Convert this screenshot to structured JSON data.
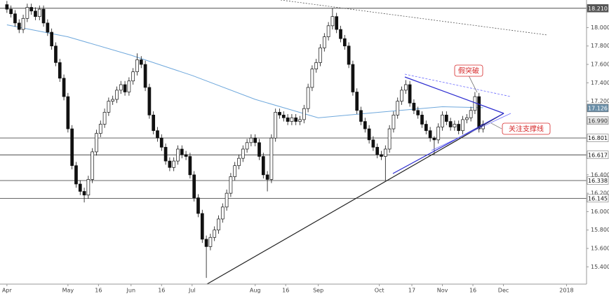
{
  "chart_data": {
    "type": "candlestick",
    "xlim": [
      -3.4,
      284.5
    ],
    "ylim": [
      15.22,
      18.3
    ],
    "xticks": [
      {
        "value": 0,
        "label": "Apr"
      },
      {
        "value": 30,
        "label": "May"
      },
      {
        "value": 45,
        "label": "16"
      },
      {
        "value": 61,
        "label": "Jun"
      },
      {
        "value": 76,
        "label": "16"
      },
      {
        "value": 91,
        "label": "Jul"
      },
      {
        "value": 122,
        "label": "Aug"
      },
      {
        "value": 137,
        "label": "16"
      },
      {
        "value": 153,
        "label": "Sep"
      },
      {
        "value": 183,
        "label": "Oct"
      },
      {
        "value": 199,
        "label": "17"
      },
      {
        "value": 214,
        "label": "Nov"
      },
      {
        "value": 229,
        "label": "16"
      },
      {
        "value": 244,
        "label": "Dec"
      },
      {
        "value": 275,
        "label": "2018"
      }
    ],
    "yticks": [
      {
        "value": 18.0,
        "label": "18.000"
      },
      {
        "value": 17.8,
        "label": "17.800"
      },
      {
        "value": 17.6,
        "label": "17.600"
      },
      {
        "value": 17.4,
        "label": "17.400"
      },
      {
        "value": 17.2,
        "label": "17.200"
      },
      {
        "value": 16.4,
        "label": "16.400"
      },
      {
        "value": 16.2,
        "label": "16.200"
      },
      {
        "value": 16.0,
        "label": "16.000"
      },
      {
        "value": 15.8,
        "label": "15.800"
      },
      {
        "value": 15.6,
        "label": "15.600"
      },
      {
        "value": 15.4,
        "label": "15.400"
      }
    ],
    "candles": {
      "x": [
        0,
        2,
        4,
        6,
        8,
        10,
        12,
        14,
        16,
        18,
        20,
        22,
        24,
        26,
        28,
        30,
        32,
        34,
        36,
        38,
        40,
        42,
        44,
        46,
        48,
        50,
        52,
        54,
        56,
        58,
        60,
        62,
        64,
        66,
        68,
        70,
        72,
        74,
        76,
        78,
        80,
        82,
        84,
        86,
        88,
        90,
        92,
        94,
        96,
        98,
        100,
        102,
        104,
        106,
        108,
        110,
        112,
        114,
        116,
        118,
        120,
        122,
        124,
        126,
        128,
        130,
        132,
        134,
        136,
        138,
        140,
        142,
        144,
        146,
        148,
        150,
        152,
        154,
        156,
        158,
        160,
        162,
        164,
        166,
        168,
        170,
        172,
        174,
        176,
        178,
        180,
        182,
        184,
        186,
        188,
        190,
        192,
        194,
        196,
        198,
        200,
        202,
        204,
        206,
        208,
        210,
        212,
        214,
        216,
        218,
        220,
        222,
        224,
        226,
        228,
        230,
        232,
        234
      ],
      "open": [
        18.25,
        18.2,
        18.15,
        18.05,
        17.98,
        18.1,
        18.22,
        18.18,
        18.12,
        18.2,
        18.05,
        17.95,
        17.8,
        17.62,
        17.45,
        17.25,
        16.9,
        16.5,
        16.3,
        16.22,
        16.18,
        16.35,
        16.65,
        16.85,
        16.95,
        17.08,
        17.2,
        17.22,
        17.32,
        17.38,
        17.3,
        17.42,
        17.52,
        17.65,
        17.6,
        17.35,
        17.05,
        16.88,
        16.8,
        16.7,
        16.55,
        16.48,
        16.55,
        16.68,
        16.62,
        16.6,
        16.4,
        16.15,
        15.98,
        15.7,
        15.62,
        15.72,
        15.8,
        15.92,
        16.05,
        16.2,
        16.38,
        16.5,
        16.58,
        16.68,
        16.75,
        16.8,
        16.75,
        16.6,
        16.4,
        16.35,
        16.8,
        17.08,
        17.05,
        17.02,
        16.98,
        17.02,
        16.98,
        17.0,
        17.12,
        17.35,
        17.55,
        17.62,
        17.78,
        17.9,
        18.02,
        18.12,
        17.98,
        17.88,
        17.8,
        17.6,
        17.3,
        17.1,
        16.98,
        16.9,
        16.78,
        16.7,
        16.62,
        16.6,
        16.68,
        16.9,
        17.05,
        17.2,
        17.32,
        17.38,
        17.18,
        17.1,
        17.05,
        16.95,
        16.88,
        16.8,
        16.78,
        16.92,
        17.05,
        16.98,
        16.92,
        16.95,
        16.88,
        17.0,
        17.02,
        17.1,
        17.25,
        16.9
      ],
      "high": [
        18.29,
        18.24,
        18.19,
        18.09,
        18.14,
        18.26,
        18.26,
        18.22,
        18.24,
        18.24,
        18.09,
        17.99,
        17.84,
        17.66,
        17.49,
        17.29,
        16.94,
        16.54,
        16.34,
        16.26,
        16.39,
        16.69,
        16.89,
        16.99,
        17.12,
        17.24,
        17.26,
        17.36,
        17.42,
        17.42,
        17.46,
        17.56,
        17.72,
        17.69,
        17.64,
        17.39,
        17.09,
        16.92,
        16.84,
        16.74,
        16.59,
        16.59,
        16.72,
        16.72,
        16.66,
        16.64,
        16.44,
        16.19,
        16.02,
        15.74,
        15.76,
        15.84,
        15.96,
        16.09,
        16.24,
        16.42,
        16.54,
        16.62,
        16.72,
        16.79,
        16.84,
        16.84,
        16.79,
        16.64,
        16.44,
        16.84,
        17.12,
        17.12,
        17.09,
        17.06,
        17.06,
        17.06,
        17.04,
        17.16,
        17.39,
        17.59,
        17.66,
        17.82,
        17.94,
        18.06,
        18.21,
        18.16,
        18.02,
        17.92,
        17.84,
        17.64,
        17.34,
        17.14,
        17.02,
        16.94,
        16.82,
        16.74,
        16.66,
        16.72,
        16.94,
        17.09,
        17.24,
        17.36,
        17.43,
        17.42,
        17.22,
        17.14,
        17.09,
        16.99,
        16.92,
        16.82,
        16.96,
        17.09,
        17.09,
        17.02,
        16.99,
        16.99,
        17.04,
        17.06,
        17.14,
        17.3,
        17.29,
        16.99
      ],
      "low": [
        18.16,
        18.11,
        18.01,
        17.94,
        17.94,
        18.06,
        18.14,
        18.08,
        18.08,
        18.01,
        17.91,
        17.76,
        17.58,
        17.41,
        17.21,
        16.86,
        16.46,
        16.26,
        16.18,
        16.1,
        16.14,
        16.31,
        16.61,
        16.81,
        16.91,
        17.04,
        17.16,
        17.18,
        17.28,
        17.26,
        17.26,
        17.38,
        17.48,
        17.56,
        17.31,
        17.01,
        16.84,
        16.76,
        16.66,
        16.51,
        16.44,
        16.44,
        16.51,
        16.58,
        16.56,
        16.36,
        16.11,
        15.94,
        15.66,
        15.28,
        15.58,
        15.68,
        15.76,
        15.88,
        16.01,
        16.16,
        16.34,
        16.46,
        16.54,
        16.64,
        16.71,
        16.71,
        16.56,
        16.36,
        16.22,
        16.31,
        16.76,
        17.01,
        16.98,
        16.94,
        16.94,
        16.94,
        16.94,
        16.96,
        17.08,
        17.31,
        17.51,
        17.58,
        17.74,
        17.86,
        17.98,
        17.94,
        17.84,
        17.76,
        17.56,
        17.26,
        17.06,
        16.94,
        16.86,
        16.74,
        16.66,
        16.58,
        16.56,
        16.34,
        16.64,
        16.86,
        17.01,
        17.16,
        17.28,
        17.14,
        17.06,
        17.01,
        16.91,
        16.84,
        16.76,
        16.62,
        16.74,
        16.88,
        16.94,
        16.88,
        16.88,
        16.84,
        16.84,
        16.96,
        16.98,
        17.06,
        16.86,
        16.86
      ],
      "close": [
        18.2,
        18.15,
        18.05,
        17.98,
        18.1,
        18.22,
        18.18,
        18.12,
        18.2,
        18.05,
        17.95,
        17.8,
        17.62,
        17.45,
        17.25,
        16.9,
        16.5,
        16.3,
        16.22,
        16.18,
        16.35,
        16.65,
        16.85,
        16.95,
        17.08,
        17.2,
        17.22,
        17.32,
        17.38,
        17.3,
        17.42,
        17.52,
        17.65,
        17.6,
        17.35,
        17.05,
        16.88,
        16.8,
        16.7,
        16.55,
        16.48,
        16.55,
        16.68,
        16.62,
        16.6,
        16.4,
        16.15,
        15.98,
        15.7,
        15.62,
        15.72,
        15.8,
        15.92,
        16.05,
        16.2,
        16.38,
        16.5,
        16.58,
        16.68,
        16.75,
        16.8,
        16.75,
        16.6,
        16.4,
        16.35,
        16.8,
        17.08,
        17.05,
        17.02,
        16.98,
        17.02,
        16.98,
        17.0,
        17.12,
        17.35,
        17.55,
        17.62,
        17.78,
        17.9,
        18.02,
        18.12,
        17.98,
        17.88,
        17.8,
        17.6,
        17.3,
        17.1,
        16.98,
        16.9,
        16.78,
        16.7,
        16.62,
        16.6,
        16.68,
        16.9,
        17.05,
        17.2,
        17.32,
        17.38,
        17.18,
        17.1,
        17.05,
        16.95,
        16.88,
        16.8,
        16.78,
        16.92,
        17.05,
        16.98,
        16.92,
        16.95,
        16.88,
        17.0,
        17.02,
        17.1,
        17.25,
        16.9,
        16.95
      ],
      "up_color": "#ffffff",
      "down_color": "#111111"
    },
    "moving_average": {
      "color": "#6fa8dc",
      "x": [
        0,
        30,
        61,
        91,
        122,
        153,
        183,
        214,
        234
      ],
      "values": [
        18.03,
        17.9,
        17.7,
        17.48,
        17.22,
        17.02,
        17.08,
        17.14,
        17.13
      ]
    },
    "levels": [
      {
        "value": 18.21,
        "label": "18.210",
        "fill": "#555555",
        "text_color": "#ffffff",
        "line": true
      },
      {
        "value": 17.126,
        "label": "17.126",
        "fill": "#6b8fa8",
        "text_color": "#ffffff",
        "line": false
      },
      {
        "value": 16.99,
        "label": "16.990",
        "fill": "#e4e4e4",
        "text_color": "#333333",
        "line": false
      },
      {
        "value": 16.801,
        "label": "16.801",
        "fill": "#ffffff",
        "text_color": "#111111",
        "line": true
      },
      {
        "value": 16.617,
        "label": "16.617",
        "fill": "#ffffff",
        "text_color": "#111111",
        "line": true
      },
      {
        "value": 16.338,
        "label": "16.338",
        "fill": "#ffffff",
        "text_color": "#111111",
        "line": true
      },
      {
        "value": 16.145,
        "label": "16.145",
        "fill": "#ffffff",
        "text_color": "#111111",
        "line": true
      }
    ],
    "annotations": [
      {
        "text": "假突破"
      },
      {
        "text": "关注支撑线"
      }
    ]
  }
}
